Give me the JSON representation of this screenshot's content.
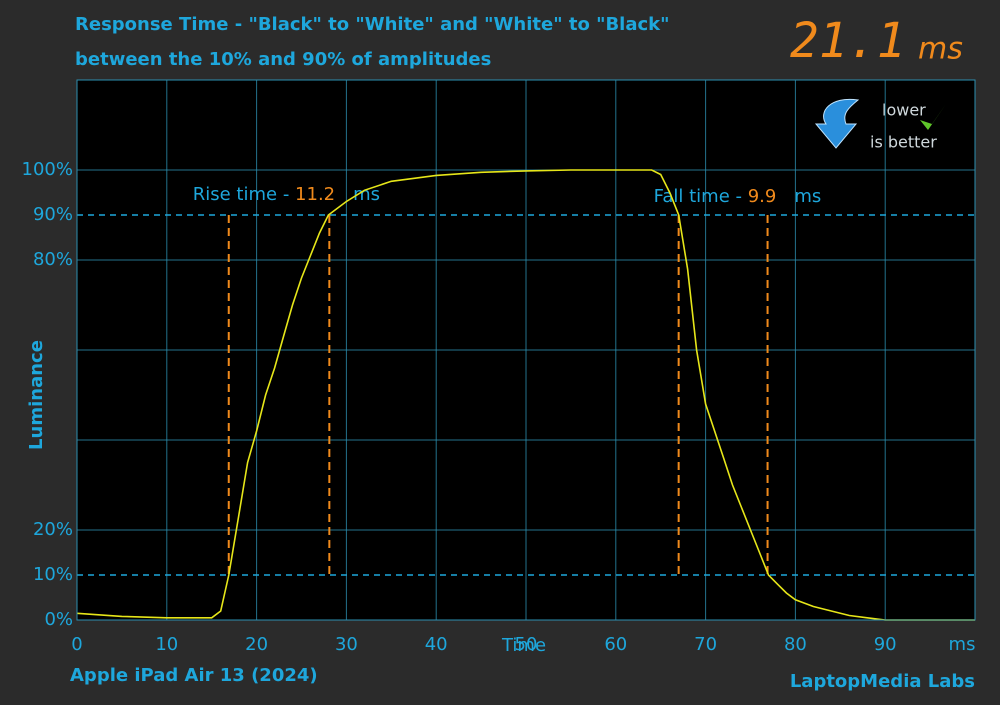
{
  "chart_data": {
    "type": "line",
    "title": "Response Time - \"Black\" to \"White\" and \"White\" to \"Black\"",
    "subtitle": "between the 10% and 90% of amplitudes",
    "x_label": "Time",
    "x_unit": "ms",
    "y_label": "Luminance",
    "device": "Apple iPad Air 13 (2024)",
    "source": "LaptopMedia Labs",
    "headline": {
      "value": 21.1,
      "unit": "ms"
    },
    "badge": [
      "lower",
      "is better"
    ],
    "color": "#e6e619",
    "xlim": [
      0,
      100
    ],
    "ylim": [
      0,
      120
    ],
    "xticks": [
      0,
      10,
      20,
      30,
      40,
      50,
      60,
      70,
      80,
      90
    ],
    "x_grid": [
      0,
      10,
      20,
      30,
      40,
      50,
      60,
      70,
      80,
      90,
      100
    ],
    "y_grid": [
      0,
      20,
      40,
      60,
      80,
      100,
      120
    ],
    "yticks": [
      {
        "value": 0,
        "label": "0%"
      },
      {
        "value": 10,
        "label": "10%"
      },
      {
        "value": 20,
        "label": "20%"
      },
      {
        "value": 80,
        "label": "80%"
      },
      {
        "value": 90,
        "label": "90%"
      },
      {
        "value": 100,
        "label": "100%"
      }
    ],
    "thresholds": [
      10,
      90
    ],
    "annotations": [
      {
        "label": "Rise time - ",
        "value": 11.2,
        "unit": "ms",
        "start": 16.9,
        "end": 28.1
      },
      {
        "label": "Fall time - ",
        "value": 9.9,
        "unit": "ms",
        "start": 67,
        "end": 76.9
      }
    ],
    "x": [
      0,
      5,
      10,
      15,
      16,
      16.9,
      18,
      19,
      20,
      21,
      22,
      23,
      24,
      25,
      26,
      27,
      28,
      30,
      32,
      35,
      40,
      45,
      50,
      55,
      60,
      64,
      65,
      66,
      67,
      68,
      69,
      70,
      71,
      72,
      73,
      74,
      75,
      76,
      77,
      78,
      79,
      80,
      82,
      84,
      86,
      88,
      90,
      95,
      100
    ],
    "values": [
      1.5,
      0.8,
      0.5,
      0.5,
      2,
      10,
      23,
      35,
      42,
      50,
      56,
      63,
      70,
      76,
      81,
      86,
      90,
      93,
      95.5,
      97.5,
      98.8,
      99.5,
      99.8,
      100,
      100,
      100,
      99,
      95,
      90,
      78,
      60,
      48,
      42,
      36,
      30,
      25,
      20,
      15,
      10,
      8,
      6,
      4.5,
      3,
      2,
      1,
      0.5,
      0,
      0,
      0
    ]
  }
}
